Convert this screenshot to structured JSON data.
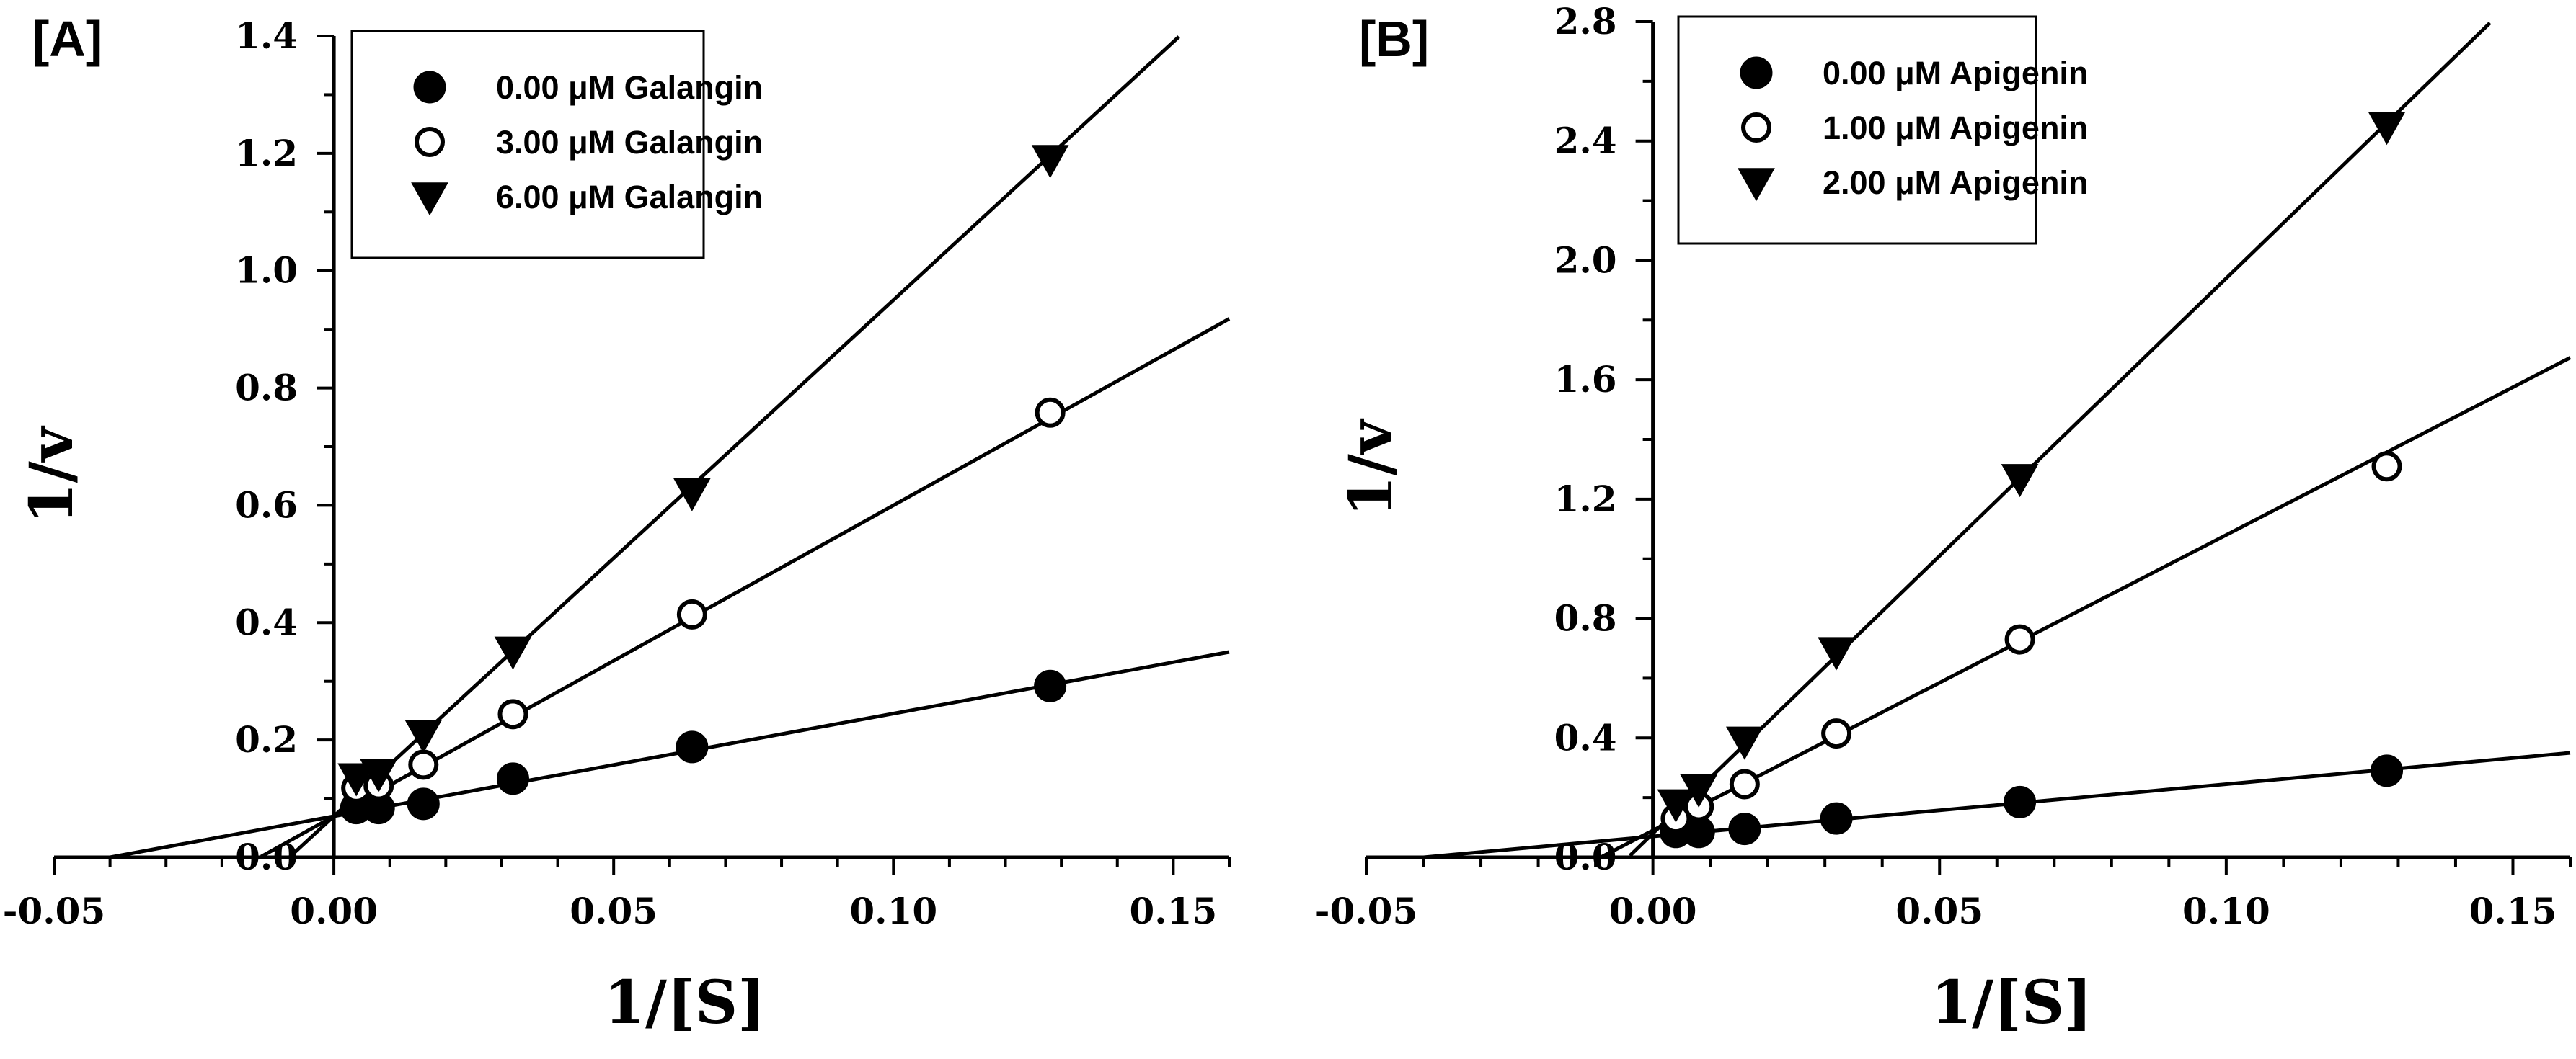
{
  "chart_data": [
    {
      "type": "scatter",
      "panel_label": "[A]",
      "xlabel": "1/[S]",
      "ylabel": "1/v",
      "xlim": [
        -0.05,
        0.16
      ],
      "ylim": [
        0,
        1.4
      ],
      "xticks": [
        -0.05,
        0.0,
        0.05,
        0.1,
        0.15
      ],
      "xtick_labels": [
        "-0.05",
        "0.00",
        "0.05",
        "0.10",
        "0.15"
      ],
      "yticks": [
        0.0,
        0.2,
        0.4,
        0.6,
        0.8,
        1.0,
        1.2,
        1.4
      ],
      "ytick_labels": [
        "0.0",
        "0.2",
        "0.4",
        "0.6",
        "0.8",
        "1.0",
        "1.2",
        "1.4"
      ],
      "legend_position": "top-left",
      "grid": false,
      "series": [
        {
          "name": "0.00 μM Galangin",
          "marker": "filled-circle",
          "x": [
            0.004,
            0.008,
            0.016,
            0.032,
            0.064,
            0.128
          ],
          "y": [
            0.084,
            0.084,
            0.091,
            0.134,
            0.188,
            0.292
          ],
          "fit": {
            "slope": 1.75,
            "intercept": 0.07,
            "x_range": [
              -0.04,
              0.16
            ]
          }
        },
        {
          "name": "3.00 μM Galangin",
          "marker": "open-circle",
          "x": [
            0.004,
            0.008,
            0.016,
            0.032,
            0.064,
            0.128
          ],
          "y": [
            0.118,
            0.122,
            0.158,
            0.244,
            0.414,
            0.758
          ],
          "fit": {
            "slope": 5.3,
            "intercept": 0.07,
            "x_range": [
              -0.013,
              0.16
            ]
          }
        },
        {
          "name": "6.00 μM Galangin",
          "marker": "filled-triangle-down",
          "x": [
            0.004,
            0.008,
            0.016,
            0.032,
            0.064,
            0.128
          ],
          "y": [
            0.136,
            0.143,
            0.21,
            0.352,
            0.622,
            1.19
          ],
          "fit": {
            "slope": 8.8,
            "intercept": 0.07,
            "x_range": [
              -0.008,
              0.151
            ]
          }
        }
      ]
    },
    {
      "type": "scatter",
      "panel_label": "[B]",
      "xlabel": "1/[S]",
      "ylabel": "1/v",
      "xlim": [
        -0.05,
        0.16
      ],
      "ylim": [
        0,
        2.8
      ],
      "xticks": [
        -0.05,
        0.0,
        0.05,
        0.1,
        0.15
      ],
      "xtick_labels": [
        "-0.05",
        "0.00",
        "0.05",
        "0.10",
        "0.15"
      ],
      "yticks": [
        0.0,
        0.4,
        0.8,
        1.2,
        1.6,
        2.0,
        2.4,
        2.8
      ],
      "ytick_labels": [
        "0.0",
        "0.4",
        "0.8",
        "1.2",
        "1.6",
        "2.0",
        "2.4",
        "2.8"
      ],
      "legend_position": "top-left",
      "grid": false,
      "series": [
        {
          "name": "0.00 μM Apigenin",
          "marker": "filled-circle",
          "x": [
            0.004,
            0.008,
            0.016,
            0.032,
            0.064,
            0.128
          ],
          "y": [
            0.085,
            0.085,
            0.095,
            0.13,
            0.185,
            0.29
          ],
          "fit": {
            "slope": 1.75,
            "intercept": 0.07,
            "x_range": [
              -0.04,
              0.16
            ]
          }
        },
        {
          "name": "1.00 μM Apigenin",
          "marker": "open-circle",
          "x": [
            0.004,
            0.008,
            0.016,
            0.032,
            0.064,
            0.128
          ],
          "y": [
            0.13,
            0.17,
            0.245,
            0.415,
            0.73,
            1.31
          ],
          "fit": {
            "slope": 9.9,
            "intercept": 0.09,
            "x_range": [
              -0.009,
              0.16
            ]
          }
        },
        {
          "name": "2.00 μM Apigenin",
          "marker": "filled-triangle-down",
          "x": [
            0.004,
            0.008,
            0.016,
            0.032,
            0.064,
            0.128
          ],
          "y": [
            0.18,
            0.23,
            0.39,
            0.69,
            1.27,
            2.45
          ],
          "fit": {
            "slope": 18.6,
            "intercept": 0.08,
            "x_range": [
              -0.004,
              0.146
            ]
          }
        }
      ]
    }
  ]
}
